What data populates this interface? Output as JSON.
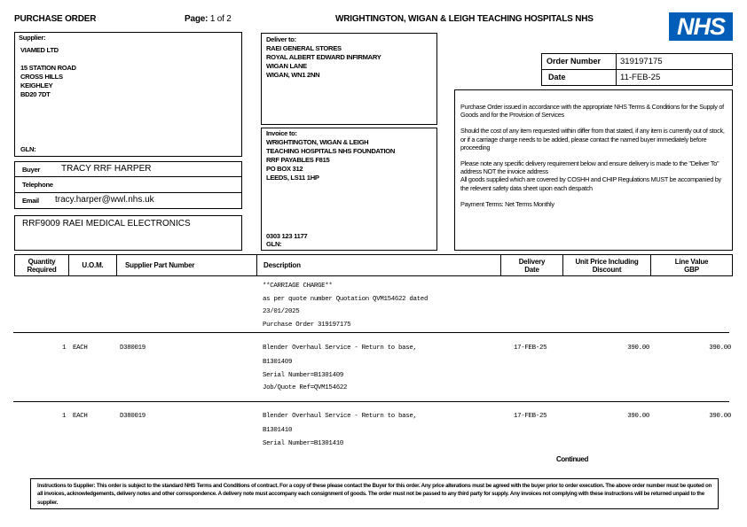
{
  "header": {
    "title": "PURCHASE ORDER",
    "page_label": "Page:",
    "page_value": "1 of 2",
    "org": "WRIGHTINGTON, WIGAN & LEIGH TEACHING HOSPITALS NHS",
    "logo": "NHS",
    "logo_color": "#005EB8"
  },
  "supplier": {
    "label": "Supplier:",
    "lines": [
      "VIAMED LTD",
      "",
      "15 STATION ROAD",
      "CROSS HILLS",
      "KEIGHLEY",
      "BD20 7DT"
    ],
    "gln": "GLN:"
  },
  "buyer": {
    "buyer_label": "Buyer",
    "buyer": "TRACY RRF HARPER",
    "telephone_label": "Telephone",
    "telephone": "",
    "email_label": "Email",
    "email": "tracy.harper@wwl.nhs.uk"
  },
  "cost_centre": "RRF9009 RAEI MEDICAL ELECTRONICS",
  "deliver": {
    "label": "Deliver to:",
    "lines": [
      "RAEI GENERAL STORES",
      "ROYAL ALBERT EDWARD INFIRMARY",
      "WIGAN LANE",
      "WIGAN, WN1 2NN"
    ]
  },
  "invoice": {
    "label": "Invoice to:",
    "lines": [
      "WRIGHTINGTON, WIGAN & LEIGH",
      "TEACHING HOSPITALS NHS FOUNDATION",
      "RRF PAYABLES F815",
      "PO BOX 312",
      "LEEDS, LS11 1HP"
    ],
    "phone": "0303 123 1177",
    "gln": "GLN:"
  },
  "order": {
    "number_label": "Order Number",
    "number": "319197175",
    "date_label": "Date",
    "date": "11-FEB-25"
  },
  "terms": [
    "Purchase Order issued in accordance with the appropriate NHS Terms & Conditions for the Supply of Goods and for the Provision of Services",
    "Should the cost of any item requested within differ from that stated, if any item is currently out of stock, or if a carriage charge needs to be added, please contact the named buyer immediately before proceeding",
    "Please note any specific delivery requirement below and ensure delivery is made to the \"Deliver To\" address NOT the invoice address\nAll goods supplied which are covered by COSHH and CHIP Regulations MUST be accompanied by the relevent safety data sheet upon each despatch",
    "Payment Terms: Net Terms Monthly"
  ],
  "columns": [
    "Quantity Required",
    "U.O.M.",
    "Supplier Part Number",
    "Description",
    "Delivery Date",
    "Unit Price Including Discount",
    "Line Value GBP"
  ],
  "carriage": [
    "**CARRIAGE CHARGE**",
    "as per quote number Quotation QVM154622 dated",
    "23/01/2025",
    "Purchase Order 319197175"
  ],
  "items": [
    {
      "qty": "1",
      "uom": "EACH",
      "part": "D380019",
      "desc": [
        "Blender Overhaul Service - Return to base,",
        "B1301409",
        "Serial Number=B1301409",
        "Job/Quote Ref=QVM154622"
      ],
      "date": "17-FEB-25",
      "unit": "390.00",
      "value": "390.00"
    },
    {
      "qty": "1",
      "uom": "EACH",
      "part": "D380019",
      "desc": [
        "Blender Overhaul Service - Return to base,",
        "B1301410",
        "Serial Number=B1301410"
      ],
      "date": "17-FEB-25",
      "unit": "390.00",
      "value": "390.00"
    }
  ],
  "continued": "Continued",
  "footer": "Instructions to Supplier: This order is subject to the standard NHS Terms and Conditions of contract. For a copy of these please contact the Buyer for this order. Any price alterations must be agreed with the buyer prior to order execution. The above order number must be quoted on all invoices, acknowledgements, delivery notes and other correspondence. A delivery note must accompany each consignment of goods. The order must not be passed to any third party for supply. Any invoices not complying with these instructions will be returned unpaid to the supplier."
}
